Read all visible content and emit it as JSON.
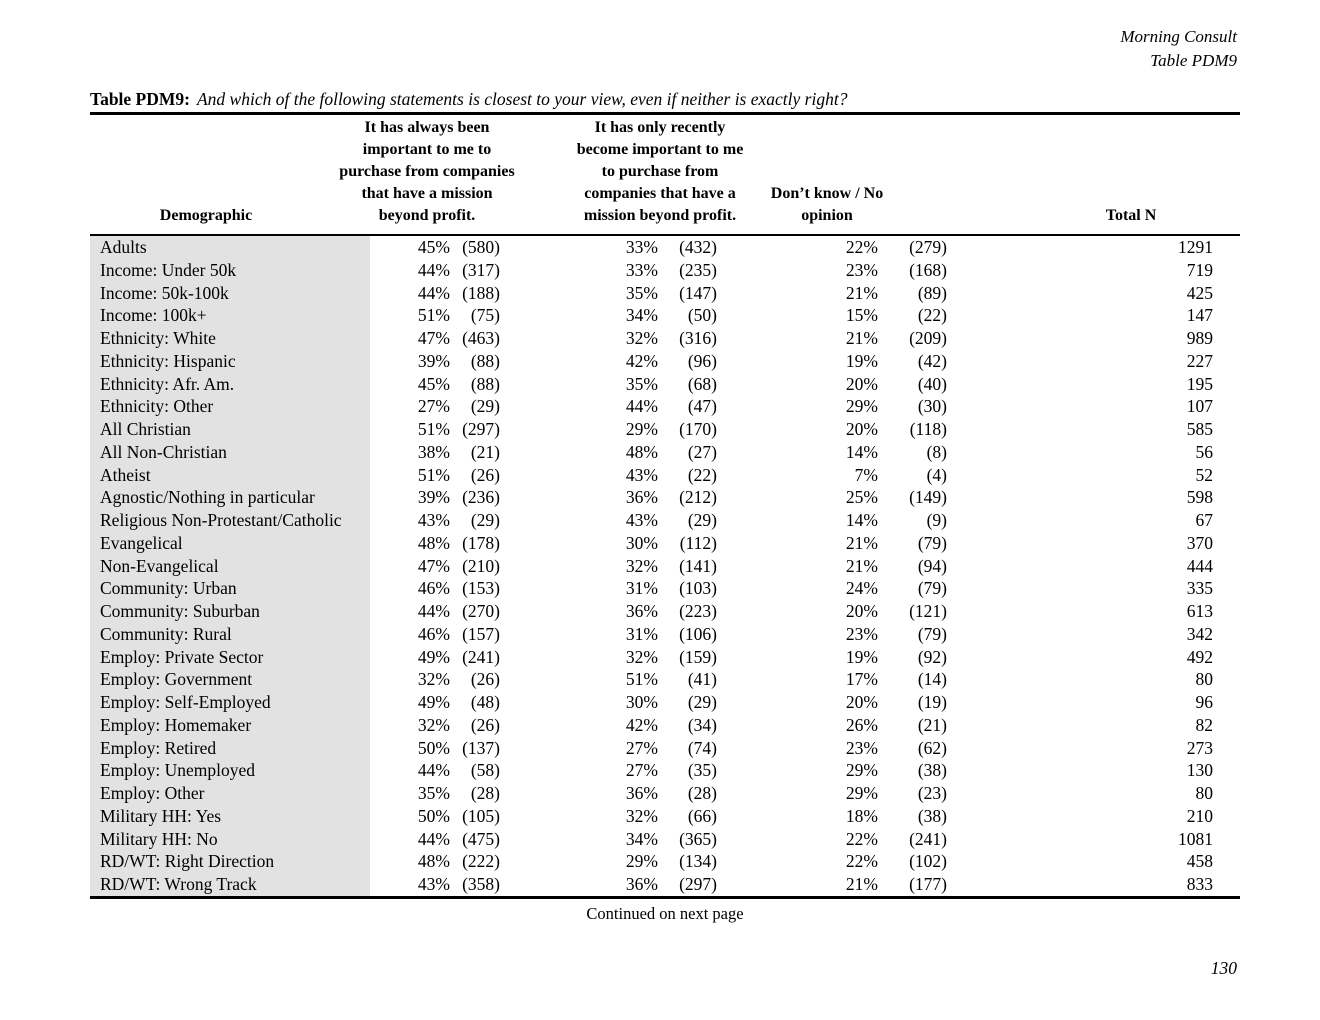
{
  "header": {
    "source": "Morning Consult",
    "table_ref": "Table PDM9"
  },
  "title": {
    "label": "Table PDM9:",
    "question": "And which of the following statements is closest to your view, even if neither is exactly right?"
  },
  "table": {
    "col_headers": {
      "demographic": "Demographic",
      "always": "It has always been\nimportant to me to\npurchase from companies\nthat have a mission\nbeyond profit.",
      "recently": "It has only recently\nbecome important to me\nto purchase from\ncompanies that have a\nmission beyond profit.",
      "dont_know": "Don’t know / No\nopinion",
      "total_n": "Total N"
    },
    "rows": [
      [
        "Adults",
        "45%",
        "(580)",
        "33%",
        "(432)",
        "22%",
        "(279)",
        "1291"
      ],
      [
        "Income: Under 50k",
        "44%",
        "(317)",
        "33%",
        "(235)",
        "23%",
        "(168)",
        "719"
      ],
      [
        "Income: 50k-100k",
        "44%",
        "(188)",
        "35%",
        "(147)",
        "21%",
        "(89)",
        "425"
      ],
      [
        "Income: 100k+",
        "51%",
        "(75)",
        "34%",
        "(50)",
        "15%",
        "(22)",
        "147"
      ],
      [
        "Ethnicity: White",
        "47%",
        "(463)",
        "32%",
        "(316)",
        "21%",
        "(209)",
        "989"
      ],
      [
        "Ethnicity: Hispanic",
        "39%",
        "(88)",
        "42%",
        "(96)",
        "19%",
        "(42)",
        "227"
      ],
      [
        "Ethnicity: Afr. Am.",
        "45%",
        "(88)",
        "35%",
        "(68)",
        "20%",
        "(40)",
        "195"
      ],
      [
        "Ethnicity: Other",
        "27%",
        "(29)",
        "44%",
        "(47)",
        "29%",
        "(30)",
        "107"
      ],
      [
        "All Christian",
        "51%",
        "(297)",
        "29%",
        "(170)",
        "20%",
        "(118)",
        "585"
      ],
      [
        "All Non-Christian",
        "38%",
        "(21)",
        "48%",
        "(27)",
        "14%",
        "(8)",
        "56"
      ],
      [
        "Atheist",
        "51%",
        "(26)",
        "43%",
        "(22)",
        "7%",
        "(4)",
        "52"
      ],
      [
        "Agnostic/Nothing in particular",
        "39%",
        "(236)",
        "36%",
        "(212)",
        "25%",
        "(149)",
        "598"
      ],
      [
        "Religious Non-Protestant/Catholic",
        "43%",
        "(29)",
        "43%",
        "(29)",
        "14%",
        "(9)",
        "67"
      ],
      [
        "Evangelical",
        "48%",
        "(178)",
        "30%",
        "(112)",
        "21%",
        "(79)",
        "370"
      ],
      [
        "Non-Evangelical",
        "47%",
        "(210)",
        "32%",
        "(141)",
        "21%",
        "(94)",
        "444"
      ],
      [
        "Community: Urban",
        "46%",
        "(153)",
        "31%",
        "(103)",
        "24%",
        "(79)",
        "335"
      ],
      [
        "Community: Suburban",
        "44%",
        "(270)",
        "36%",
        "(223)",
        "20%",
        "(121)",
        "613"
      ],
      [
        "Community: Rural",
        "46%",
        "(157)",
        "31%",
        "(106)",
        "23%",
        "(79)",
        "342"
      ],
      [
        "Employ: Private Sector",
        "49%",
        "(241)",
        "32%",
        "(159)",
        "19%",
        "(92)",
        "492"
      ],
      [
        "Employ: Government",
        "32%",
        "(26)",
        "51%",
        "(41)",
        "17%",
        "(14)",
        "80"
      ],
      [
        "Employ: Self-Employed",
        "49%",
        "(48)",
        "30%",
        "(29)",
        "20%",
        "(19)",
        "96"
      ],
      [
        "Employ: Homemaker",
        "32%",
        "(26)",
        "42%",
        "(34)",
        "26%",
        "(21)",
        "82"
      ],
      [
        "Employ: Retired",
        "50%",
        "(137)",
        "27%",
        "(74)",
        "23%",
        "(62)",
        "273"
      ],
      [
        "Employ: Unemployed",
        "44%",
        "(58)",
        "27%",
        "(35)",
        "29%",
        "(38)",
        "130"
      ],
      [
        "Employ: Other",
        "35%",
        "(28)",
        "36%",
        "(28)",
        "29%",
        "(23)",
        "80"
      ],
      [
        "Military HH: Yes",
        "50%",
        "(105)",
        "32%",
        "(66)",
        "18%",
        "(38)",
        "210"
      ],
      [
        "Military HH: No",
        "44%",
        "(475)",
        "34%",
        "(365)",
        "22%",
        "(241)",
        "1081"
      ],
      [
        "RD/WT: Right Direction",
        "48%",
        "(222)",
        "29%",
        "(134)",
        "22%",
        "(102)",
        "458"
      ],
      [
        "RD/WT: Wrong Track",
        "43%",
        "(358)",
        "36%",
        "(297)",
        "21%",
        "(177)",
        "833"
      ]
    ]
  },
  "footer": {
    "continued": "Continued on next page",
    "page_number": "130"
  }
}
